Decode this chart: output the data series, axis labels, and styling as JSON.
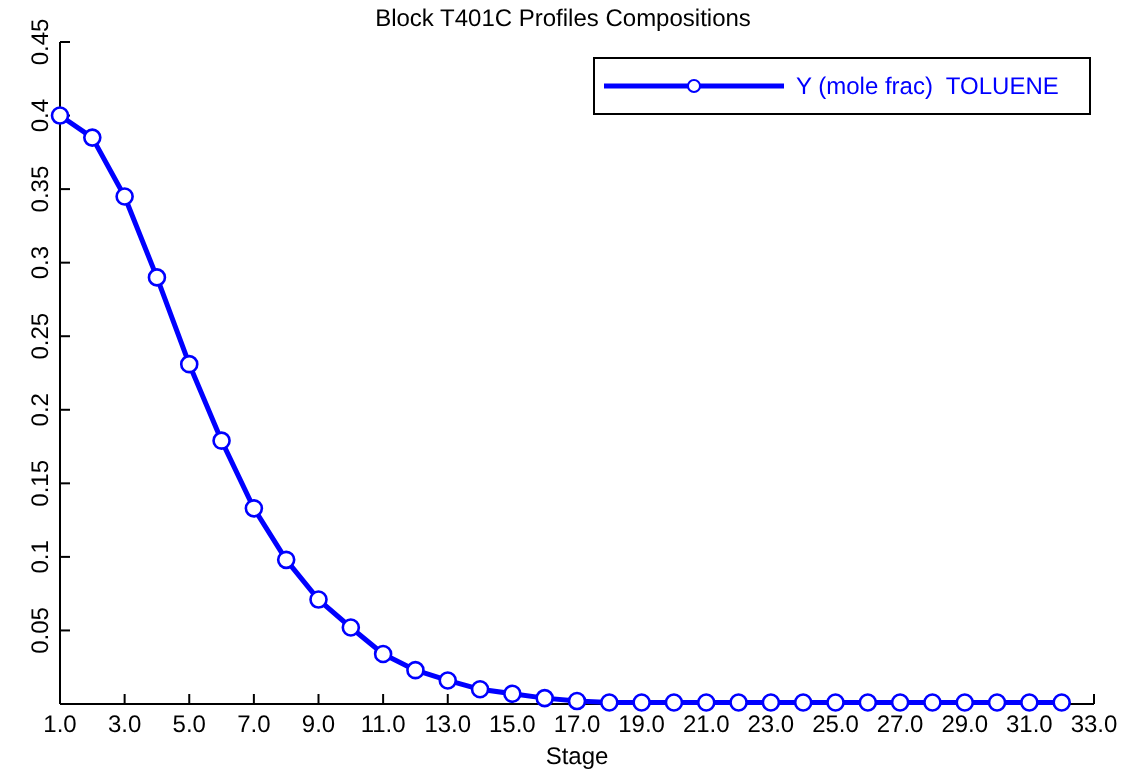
{
  "chart_data": {
    "type": "line",
    "title": "Block T401C Profiles Compositions",
    "xlabel": "Stage",
    "x": [
      1,
      2,
      3,
      4,
      5,
      6,
      7,
      8,
      9,
      10,
      11,
      12,
      13,
      14,
      15,
      16,
      17,
      18,
      19,
      20,
      21,
      22,
      23,
      24,
      25,
      26,
      27,
      28,
      29,
      30,
      31,
      32
    ],
    "series": [
      {
        "name": "Y (mole frac)  TOLUENE",
        "color": "#0000ff",
        "values": [
          0.4,
          0.385,
          0.345,
          0.29,
          0.231,
          0.179,
          0.133,
          0.098,
          0.071,
          0.052,
          0.034,
          0.023,
          0.016,
          0.01,
          0.007,
          0.004,
          0.002,
          0.001,
          0.001,
          0.001,
          0.001,
          0.001,
          0.001,
          0.001,
          0.001,
          0.001,
          0.001,
          0.001,
          0.001,
          0.001,
          0.001,
          0.001
        ]
      }
    ],
    "xlim": [
      1,
      33
    ],
    "xticks": [
      {
        "value": 1,
        "label": "1.0"
      },
      {
        "value": 3,
        "label": "3.0"
      },
      {
        "value": 5,
        "label": "5.0"
      },
      {
        "value": 7,
        "label": "7.0"
      },
      {
        "value": 9,
        "label": "9.0"
      },
      {
        "value": 11,
        "label": "11.0"
      },
      {
        "value": 13,
        "label": "13.0"
      },
      {
        "value": 15,
        "label": "15.0"
      },
      {
        "value": 17,
        "label": "17.0"
      },
      {
        "value": 19,
        "label": "19.0"
      },
      {
        "value": 21,
        "label": "21.0"
      },
      {
        "value": 23,
        "label": "23.0"
      },
      {
        "value": 25,
        "label": "25.0"
      },
      {
        "value": 27,
        "label": "27.0"
      },
      {
        "value": 29,
        "label": "29.0"
      },
      {
        "value": 31,
        "label": "31.0"
      },
      {
        "value": 33,
        "label": "33.0"
      }
    ],
    "ylim": [
      0,
      0.45
    ],
    "yticks": [
      0.05,
      0.1,
      0.15,
      0.2,
      0.25,
      0.3,
      0.35,
      0.4,
      0.45
    ],
    "grid": false,
    "legend": "top right",
    "marker": "circle",
    "line_style": "solid"
  }
}
